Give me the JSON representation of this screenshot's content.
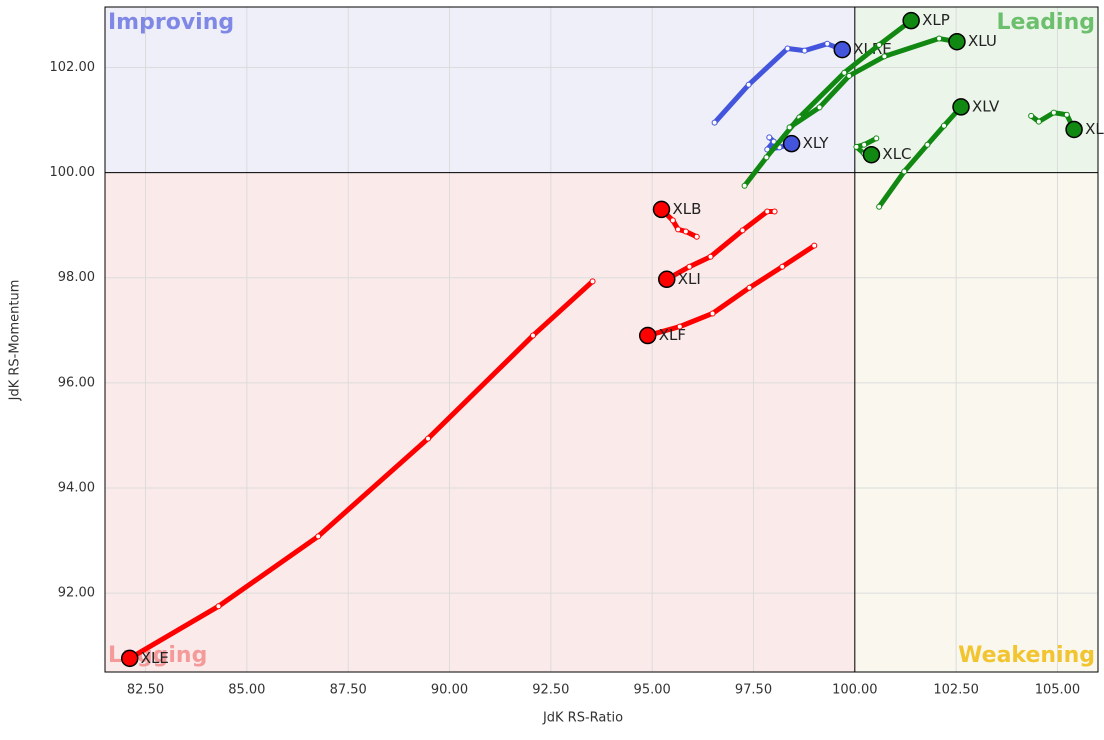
{
  "chart_data": {
    "type": "rrg",
    "xlabel": "JdK RS-Ratio",
    "ylabel": "JdK RS-Momentum",
    "xlim": [
      81.5,
      106
    ],
    "ylim": [
      90.5,
      103.15
    ],
    "center": [
      100,
      100
    ],
    "xticks": [
      {
        "value": 82.5,
        "label": "82.50"
      },
      {
        "value": 85,
        "label": "85.00"
      },
      {
        "value": 87.5,
        "label": "87.50"
      },
      {
        "value": 90,
        "label": "90.00"
      },
      {
        "value": 92.5,
        "label": "92.50"
      },
      {
        "value": 95,
        "label": "95.00"
      },
      {
        "value": 97.5,
        "label": "97.50"
      },
      {
        "value": 100,
        "label": "100.00"
      },
      {
        "value": 102.5,
        "label": "102.50"
      },
      {
        "value": 105,
        "label": "105.00"
      }
    ],
    "yticks": [
      {
        "value": 92,
        "label": "92.00"
      },
      {
        "value": 94,
        "label": "94.00"
      },
      {
        "value": 96,
        "label": "96.00"
      },
      {
        "value": 98,
        "label": "98.00"
      },
      {
        "value": 100,
        "label": "100.00"
      },
      {
        "value": 102,
        "label": "102.00"
      }
    ],
    "grid": true,
    "quadrants": [
      {
        "label": "Improving",
        "corner": "top-left",
        "color": "#8088e6",
        "fill": "#efeff9"
      },
      {
        "label": "Leading",
        "corner": "top-right",
        "color": "#6cbf6c",
        "fill": "#ecf5ea"
      },
      {
        "label": "Lagging",
        "corner": "bottom-left",
        "color": "#f59a9a",
        "fill": "#fbeaea"
      },
      {
        "label": "Weakening",
        "corner": "bottom-right",
        "color": "#f2c530",
        "fill": "#f9f7ee"
      }
    ],
    "series": [
      {
        "name": "XLE",
        "color": "#ff0000",
        "x": [
          93.53,
          92.06,
          89.47,
          86.76,
          84.3,
          82.11
        ],
        "values": [
          97.93,
          96.9,
          94.94,
          93.08,
          91.75,
          90.76
        ]
      },
      {
        "name": "XLF",
        "color": "#ff0000",
        "x": [
          99.0,
          98.21,
          97.4,
          96.49,
          95.68,
          94.89
        ],
        "values": [
          98.61,
          98.21,
          97.81,
          97.32,
          97.07,
          96.9
        ]
      },
      {
        "name": "XLI",
        "color": "#ff0000",
        "x": [
          98.02,
          97.84,
          97.23,
          96.44,
          95.92,
          95.36
        ],
        "values": [
          99.26,
          99.26,
          98.9,
          98.4,
          98.21,
          97.97
        ]
      },
      {
        "name": "XLB",
        "color": "#ff0000",
        "x": [
          96.1,
          95.83,
          95.64,
          95.51,
          95.23
        ],
        "values": [
          98.78,
          98.88,
          98.92,
          99.09,
          99.3
        ]
      },
      {
        "name": "XLRE",
        "color": "#4455dd",
        "x": [
          96.54,
          97.38,
          98.34,
          98.76,
          99.32,
          99.69
        ],
        "values": [
          100.95,
          101.67,
          102.36,
          102.32,
          102.45,
          102.34
        ]
      },
      {
        "name": "XLY",
        "color": "#4455dd",
        "x": [
          97.89,
          98.0,
          97.84,
          98.14,
          98.44
        ],
        "values": [
          100.67,
          100.59,
          100.44,
          100.48,
          100.55
        ]
      },
      {
        "name": "XLP",
        "color": "#118811",
        "x": [
          97.28,
          97.82,
          98.63,
          99.74,
          100.6,
          101.39
        ],
        "values": [
          99.75,
          100.29,
          101.05,
          101.9,
          102.43,
          102.89
        ]
      },
      {
        "name": "XLU",
        "color": "#118811",
        "x": [
          98.39,
          99.13,
          99.86,
          100.73,
          102.08,
          102.52
        ],
        "values": [
          100.86,
          101.24,
          101.84,
          102.21,
          102.55,
          102.49
        ]
      },
      {
        "name": "XLV",
        "color": "#118811",
        "x": [
          100.6,
          101.22,
          101.79,
          102.2,
          102.62
        ],
        "values": [
          99.35,
          100.02,
          100.53,
          100.89,
          101.25
        ]
      },
      {
        "name": "XLC",
        "color": "#118811",
        "x": [
          100.53,
          100.23,
          100.04,
          100.23,
          100.41
        ],
        "values": [
          100.65,
          100.53,
          100.49,
          100.36,
          100.34
        ]
      },
      {
        "name": "XLK",
        "color": "#118811",
        "x": [
          104.35,
          104.54,
          104.91,
          105.23,
          105.41
        ],
        "values": [
          101.08,
          100.97,
          101.14,
          101.1,
          100.82
        ]
      }
    ]
  }
}
